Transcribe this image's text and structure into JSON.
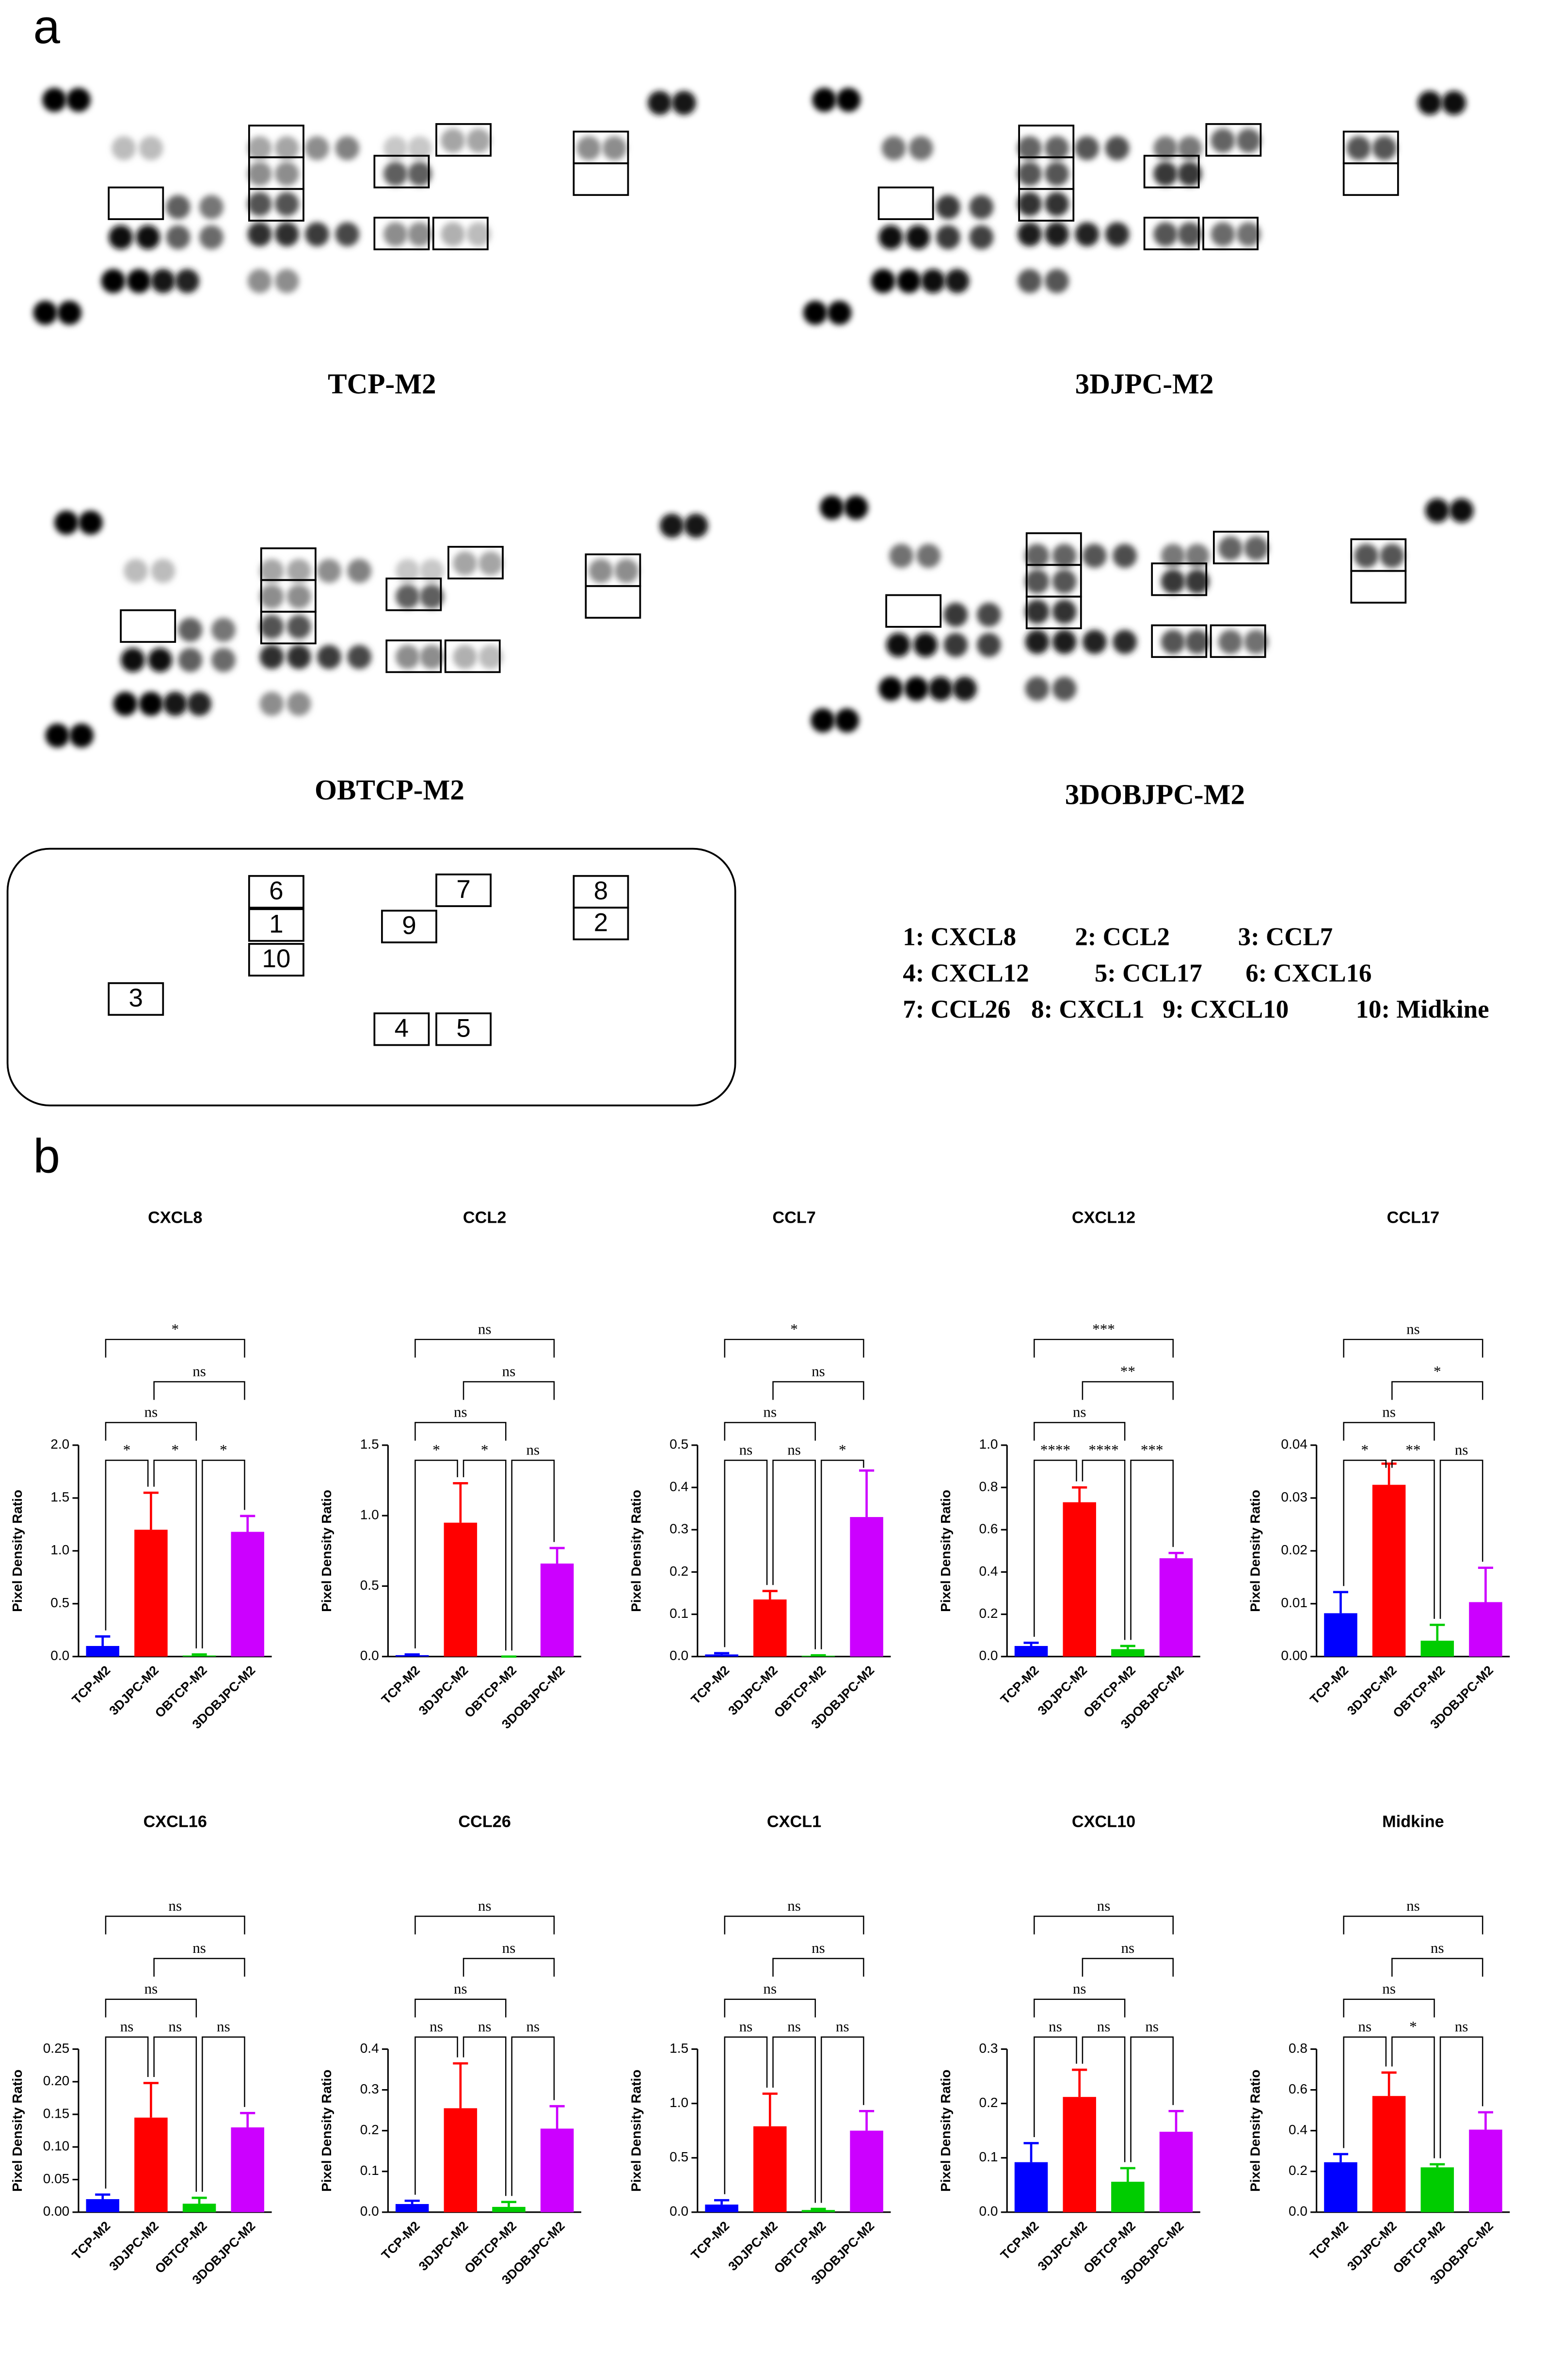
{
  "panel_labels": [
    "a",
    "b"
  ],
  "blot_captions": [
    "TCP-M2",
    "3DJPC-M2",
    "OBTCP-M2",
    "3DOBJPC-M2"
  ],
  "key": {
    "boxes": [
      "6",
      "1",
      "10",
      "3",
      "9",
      "7",
      "8",
      "2",
      "4",
      "5"
    ],
    "lines": [
      [
        "1: CXCL8",
        "2: CCL2",
        "3: CCL7"
      ],
      [
        "4: CXCL12",
        "5: CCL17",
        "6: CXCL16"
      ],
      [
        "7: CCL26",
        "8: CXCL1",
        "9: CXCL10",
        "10: Midkine"
      ]
    ]
  },
  "chart_data": [
    {
      "type": "bar",
      "title": "CXCL8",
      "ylabel": "Pixel Density Ratio",
      "categories": [
        "TCP-M2",
        "3DJPC-M2",
        "OBTCP-M2",
        "3DOBJPC-M2"
      ],
      "colors": [
        "#0000ff",
        "#ff0000",
        "#00cc00",
        "#cc00ff"
      ],
      "values": [
        0.1,
        1.2,
        0.01,
        1.18
      ],
      "errors": [
        0.09,
        0.35,
        0.01,
        0.15
      ],
      "ylim": [
        0,
        2
      ],
      "yticks": [
        {
          "value": 0,
          "label": "0.0"
        },
        0.5,
        {
          "value": 1,
          "label": "1.0"
        },
        1.5,
        {
          "value": 2,
          "label": "2.0"
        }
      ],
      "significance": [
        "*",
        "*",
        "*",
        "ns",
        "ns",
        "*"
      ]
    },
    {
      "type": "bar",
      "title": "CCL2",
      "ylabel": "Pixel Density Ratio",
      "categories": [
        "TCP-M2",
        "3DJPC-M2",
        "OBTCP-M2",
        "3DOBJPC-M2"
      ],
      "colors": [
        "#0000ff",
        "#ff0000",
        "#00cc00",
        "#cc00ff"
      ],
      "values": [
        0.01,
        0.95,
        0,
        0.66
      ],
      "errors": [
        0.005,
        0.28,
        0,
        0.11
      ],
      "ylim": [
        0,
        1.5
      ],
      "yticks": [
        {
          "value": 0,
          "label": "0.0"
        },
        0.5,
        {
          "value": 1,
          "label": "1.0"
        },
        1.5
      ],
      "significance": [
        "*",
        "*",
        "ns",
        "ns",
        "ns",
        "ns"
      ]
    },
    {
      "type": "bar",
      "title": "CCL7",
      "ylabel": "Pixel Density Ratio",
      "categories": [
        "TCP-M2",
        "3DJPC-M2",
        "OBTCP-M2",
        "3DOBJPC-M2"
      ],
      "colors": [
        "#0000ff",
        "#ff0000",
        "#00cc00",
        "#cc00ff"
      ],
      "values": [
        0.005,
        0.135,
        0.002,
        0.33
      ],
      "errors": [
        0.003,
        0.02,
        0.001,
        0.11
      ],
      "ylim": [
        0,
        0.5
      ],
      "yticks": [
        {
          "value": 0,
          "label": "0.0"
        },
        0.1,
        0.2,
        0.3,
        0.4,
        0.5
      ],
      "significance": [
        "ns",
        "ns",
        "*",
        "ns",
        "ns",
        "*"
      ]
    },
    {
      "type": "bar",
      "title": "CXCL12",
      "ylabel": "Pixel Density Ratio",
      "categories": [
        "TCP-M2",
        "3DJPC-M2",
        "OBTCP-M2",
        "3DOBJPC-M2"
      ],
      "colors": [
        "#0000ff",
        "#ff0000",
        "#00cc00",
        "#cc00ff"
      ],
      "values": [
        0.05,
        0.73,
        0.035,
        0.465
      ],
      "errors": [
        0.015,
        0.07,
        0.015,
        0.025
      ],
      "ylim": [
        0,
        1
      ],
      "yticks": [
        {
          "value": 0,
          "label": "0.0"
        },
        0.2,
        0.4,
        0.6,
        0.8,
        {
          "value": 1,
          "label": "1.0"
        }
      ],
      "significance": [
        "****",
        "****",
        "***",
        "ns",
        "**",
        "***"
      ]
    },
    {
      "type": "bar",
      "title": "CCL17",
      "ylabel": "Pixel Density Ratio",
      "categories": [
        "TCP-M2",
        "3DJPC-M2",
        "OBTCP-M2",
        "3DOBJPC-M2"
      ],
      "colors": [
        "#0000ff",
        "#ff0000",
        "#00cc00",
        "#cc00ff"
      ],
      "values": [
        0.0082,
        0.0325,
        0.003,
        0.0103
      ],
      "errors": [
        0.004,
        0.004,
        0.003,
        0.0065
      ],
      "ylim": [
        0,
        0.04
      ],
      "yticks": [
        {
          "value": 0,
          "label": "0.00"
        },
        0.01,
        0.02,
        0.03,
        0.04
      ],
      "significance": [
        "*",
        "**",
        "ns",
        "ns",
        "*",
        "ns"
      ]
    },
    {
      "type": "bar",
      "title": "CXCL16",
      "ylabel": "Pixel Density Ratio",
      "categories": [
        "TCP-M2",
        "3DJPC-M2",
        "OBTCP-M2",
        "3DOBJPC-M2"
      ],
      "colors": [
        "#0000ff",
        "#ff0000",
        "#00cc00",
        "#cc00ff"
      ],
      "values": [
        0.02,
        0.145,
        0.013,
        0.13
      ],
      "errors": [
        0.007,
        0.053,
        0.009,
        0.022
      ],
      "ylim": [
        0,
        0.25
      ],
      "yticks": [
        {
          "value": 0,
          "label": "0.00"
        },
        0.05,
        {
          "value": 0.1,
          "label": "0.10"
        },
        0.15,
        {
          "value": 0.2,
          "label": "0.20"
        },
        0.25
      ],
      "significance": [
        "ns",
        "ns",
        "ns",
        "ns",
        "ns",
        "ns"
      ]
    },
    {
      "type": "bar",
      "title": "CCL26",
      "ylabel": "Pixel Density Ratio",
      "categories": [
        "TCP-M2",
        "3DJPC-M2",
        "OBTCP-M2",
        "3DOBJPC-M2"
      ],
      "colors": [
        "#0000ff",
        "#ff0000",
        "#00cc00",
        "#cc00ff"
      ],
      "values": [
        0.02,
        0.255,
        0.013,
        0.205
      ],
      "errors": [
        0.008,
        0.11,
        0.012,
        0.055
      ],
      "ylim": [
        0,
        0.4
      ],
      "yticks": [
        {
          "value": 0,
          "label": "0.0"
        },
        0.1,
        0.2,
        0.3,
        0.4
      ],
      "significance": [
        "ns",
        "ns",
        "ns",
        "ns",
        "ns",
        "ns"
      ]
    },
    {
      "type": "bar",
      "title": "CXCL1",
      "ylabel": "Pixel Density Ratio",
      "categories": [
        "TCP-M2",
        "3DJPC-M2",
        "OBTCP-M2",
        "3DOBJPC-M2"
      ],
      "colors": [
        "#0000ff",
        "#ff0000",
        "#00cc00",
        "#cc00ff"
      ],
      "values": [
        0.07,
        0.79,
        0.02,
        0.75
      ],
      "errors": [
        0.04,
        0.3,
        0.01,
        0.18
      ],
      "ylim": [
        0,
        1.5
      ],
      "yticks": [
        {
          "value": 0,
          "label": "0.0"
        },
        0.5,
        {
          "value": 1,
          "label": "1.0"
        },
        1.5
      ],
      "significance": [
        "ns",
        "ns",
        "ns",
        "ns",
        "ns",
        "ns"
      ]
    },
    {
      "type": "bar",
      "title": "CXCL10",
      "ylabel": "Pixel Density Ratio",
      "categories": [
        "TCP-M2",
        "3DJPC-M2",
        "OBTCP-M2",
        "3DOBJPC-M2"
      ],
      "colors": [
        "#0000ff",
        "#ff0000",
        "#00cc00",
        "#cc00ff"
      ],
      "values": [
        0.092,
        0.212,
        0.056,
        0.148
      ],
      "errors": [
        0.035,
        0.05,
        0.025,
        0.038
      ],
      "ylim": [
        0,
        0.3
      ],
      "yticks": [
        {
          "value": 0,
          "label": "0.0"
        },
        0.1,
        0.2,
        0.3
      ],
      "significance": [
        "ns",
        "ns",
        "ns",
        "ns",
        "ns",
        "ns"
      ]
    },
    {
      "type": "bar",
      "title": "Midkine",
      "ylabel": "Pixel Density Ratio",
      "categories": [
        "TCP-M2",
        "3DJPC-M2",
        "OBTCP-M2",
        "3DOBJPC-M2"
      ],
      "colors": [
        "#0000ff",
        "#ff0000",
        "#00cc00",
        "#cc00ff"
      ],
      "values": [
        0.245,
        0.57,
        0.22,
        0.405
      ],
      "errors": [
        0.04,
        0.115,
        0.015,
        0.085
      ],
      "ylim": [
        0,
        0.8
      ],
      "yticks": [
        {
          "value": 0,
          "label": "0.0"
        },
        0.2,
        0.4,
        0.6,
        0.8
      ],
      "significance": [
        "ns",
        "*",
        "ns",
        "ns",
        "ns",
        "ns"
      ]
    }
  ]
}
